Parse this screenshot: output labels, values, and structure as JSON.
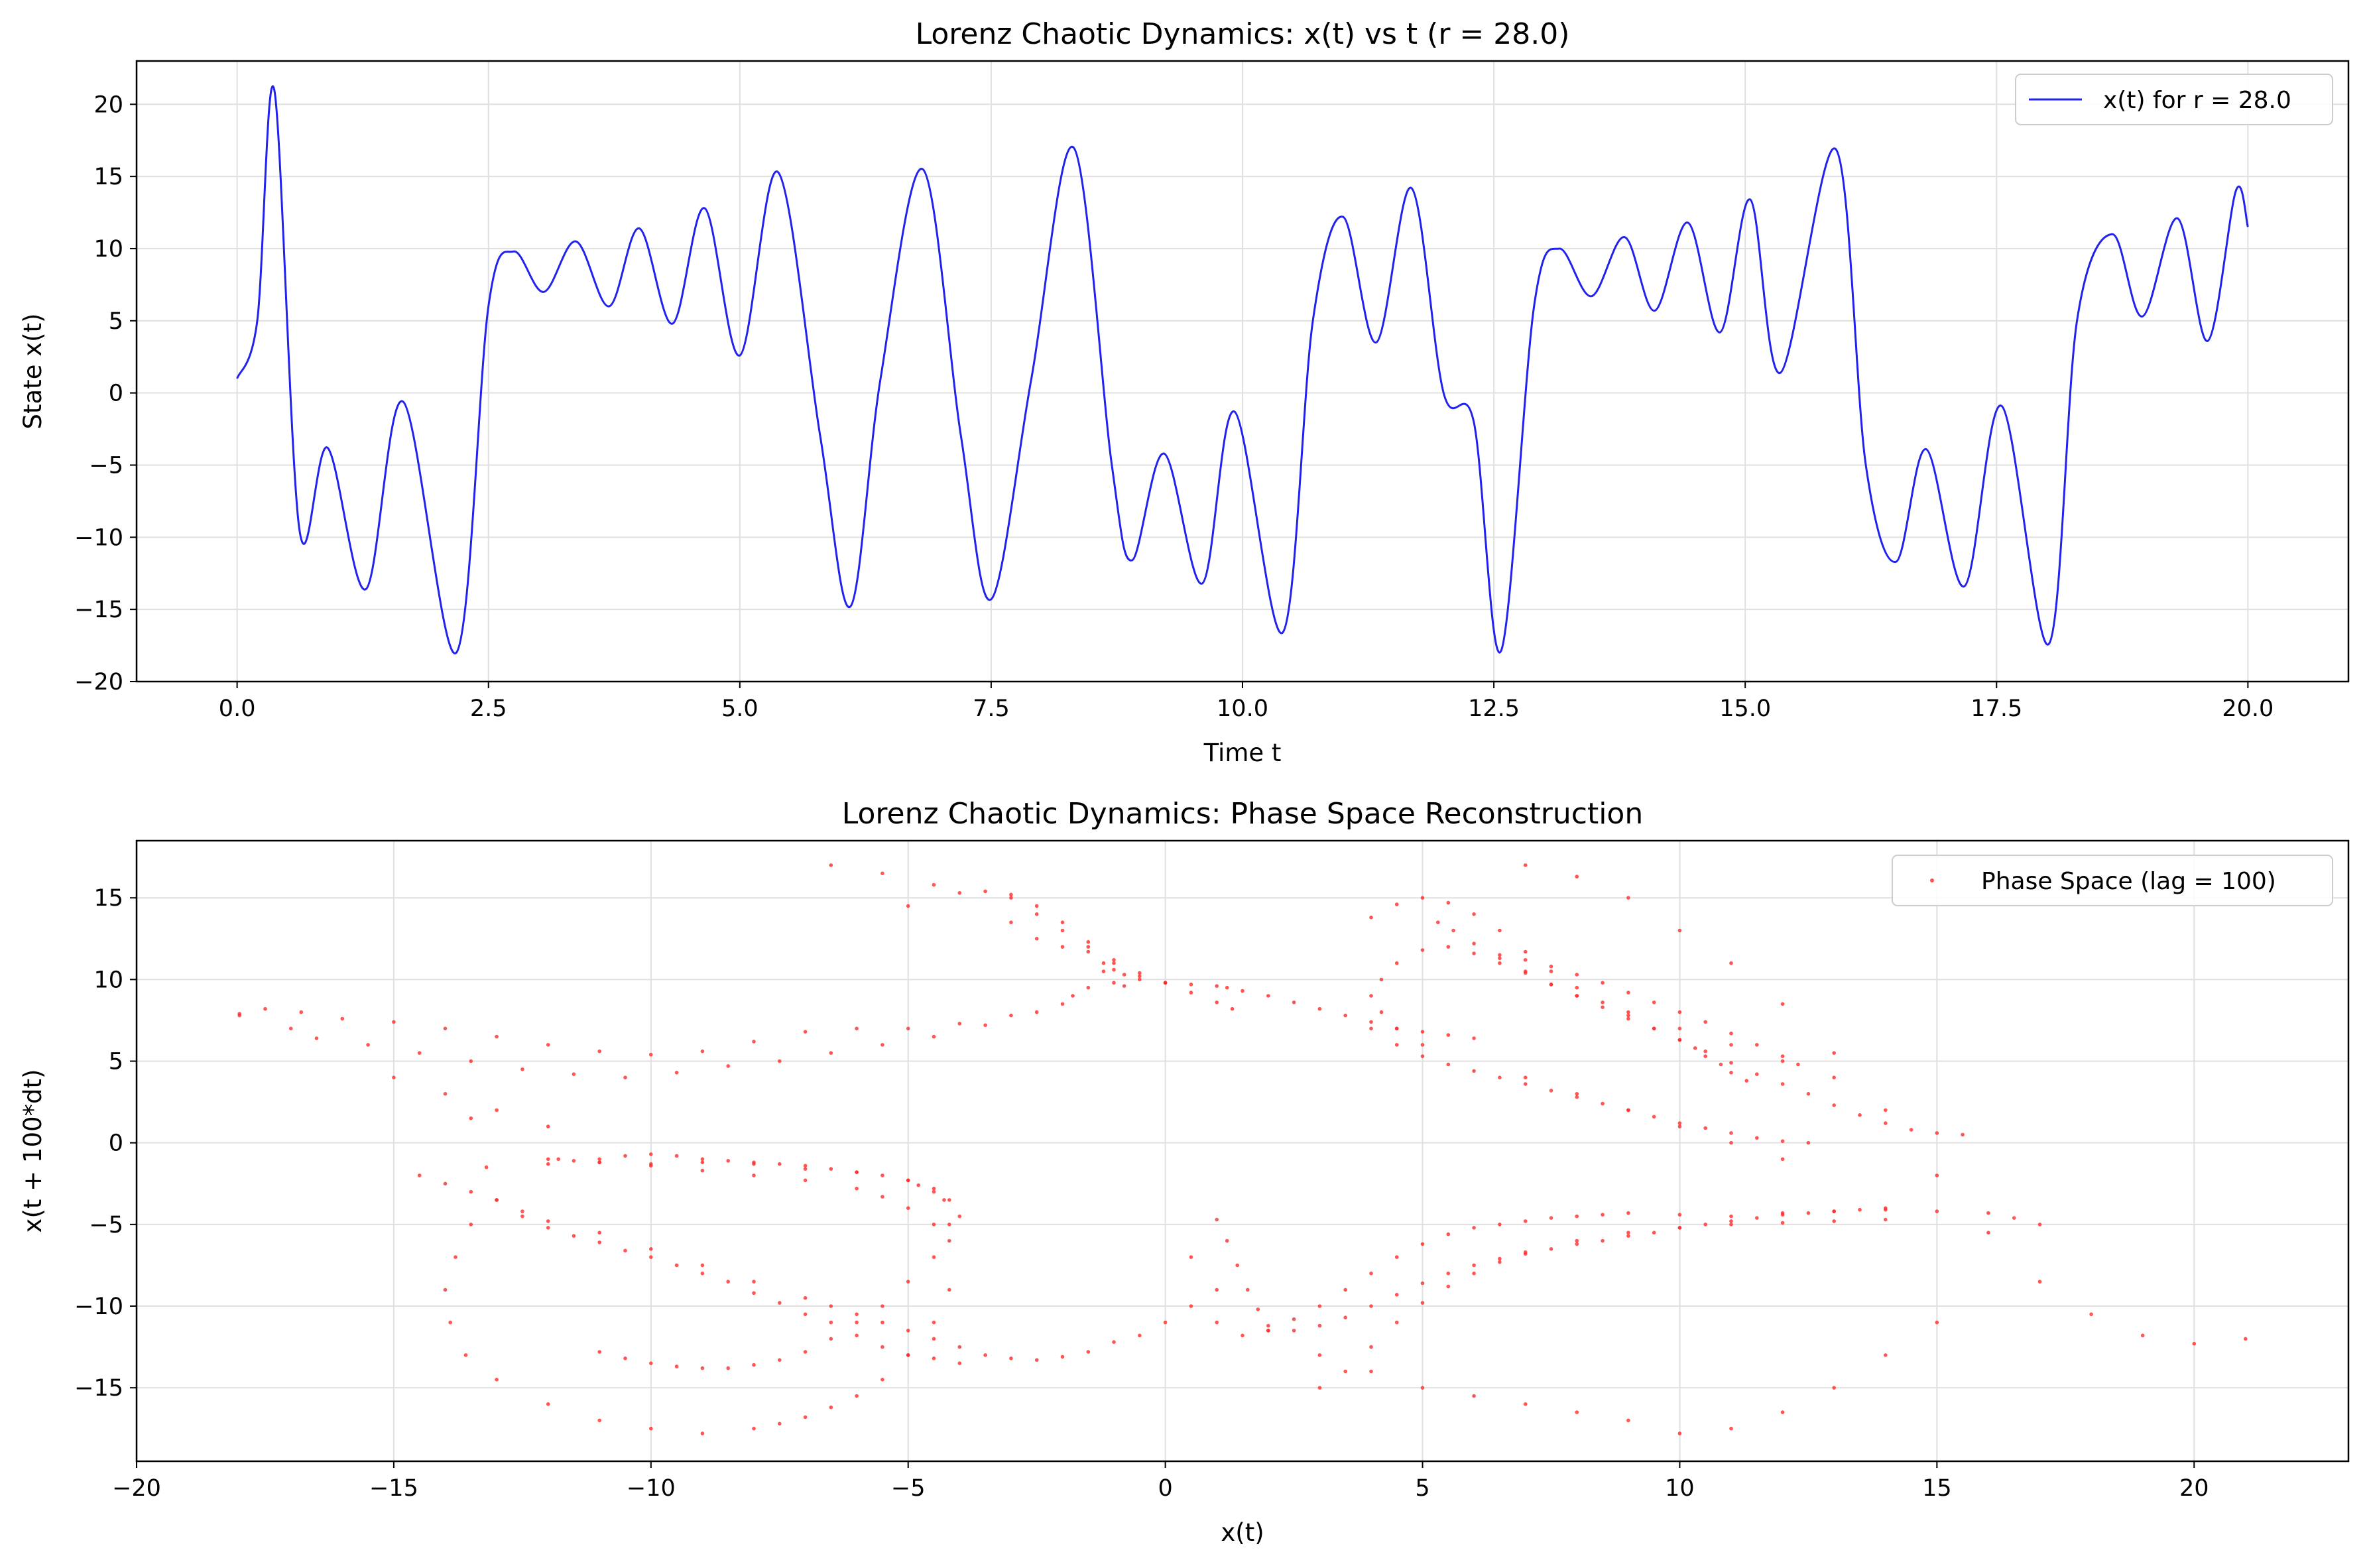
{
  "figure": {
    "background": "#ffffff",
    "grid_color": "#e0e0e0"
  },
  "chart_data": [
    {
      "type": "line",
      "title": "Lorenz Chaotic Dynamics: x(t) vs t (r = 28.0)",
      "xlabel": "Time t",
      "ylabel": "State x(t)",
      "xlim": [
        -1.0,
        21.0
      ],
      "ylim": [
        -20,
        23
      ],
      "xticks": [
        0.0,
        2.5,
        5.0,
        7.5,
        10.0,
        12.5,
        15.0,
        17.5,
        20.0
      ],
      "xtick_labels": [
        "0.0",
        "2.5",
        "5.0",
        "7.5",
        "10.0",
        "12.5",
        "15.0",
        "17.5",
        "20.0"
      ],
      "yticks": [
        -20,
        -15,
        -10,
        -5,
        0,
        5,
        10,
        15,
        20
      ],
      "ytick_labels": [
        "−20",
        "−15",
        "−10",
        "−5",
        "0",
        "5",
        "10",
        "15",
        "20"
      ],
      "grid": true,
      "legend_position": "top-right",
      "series": [
        {
          "name": "x(t) for r = 28.0",
          "color": "#2222ee",
          "x": [
            0.0,
            0.2,
            0.37,
            0.62,
            0.9,
            1.28,
            1.65,
            2.18,
            2.5,
            2.75,
            3.05,
            3.37,
            3.7,
            4.0,
            4.33,
            4.65,
            5.0,
            5.38,
            5.8,
            6.1,
            6.4,
            6.82,
            7.2,
            7.5,
            7.9,
            8.32,
            8.7,
            8.9,
            9.22,
            9.6,
            9.92,
            10.4,
            10.7,
            11.0,
            11.33,
            11.68,
            12.0,
            12.3,
            12.57,
            12.9,
            13.15,
            13.47,
            13.8,
            14.1,
            14.43,
            14.75,
            15.05,
            15.35,
            15.9,
            16.2,
            16.5,
            16.8,
            17.18,
            17.55,
            18.02,
            18.3,
            18.65,
            18.95,
            19.3,
            19.6,
            19.88,
            20.0
          ],
          "y": [
            1.0,
            5.0,
            21.0,
            -9.5,
            -3.8,
            -13.6,
            -0.6,
            -18.0,
            6.0,
            9.8,
            7.0,
            10.5,
            6.0,
            11.4,
            4.8,
            12.8,
            2.6,
            15.3,
            -3.0,
            -14.8,
            1.0,
            15.5,
            -3.0,
            -14.3,
            1.0,
            17.0,
            -5.0,
            -11.6,
            -4.2,
            -13.2,
            -1.3,
            -16.6,
            5.0,
            12.2,
            3.5,
            14.2,
            0.0,
            -2.0,
            -17.9,
            6.0,
            10.0,
            6.7,
            10.8,
            5.7,
            11.8,
            4.2,
            13.4,
            1.4,
            16.9,
            -5.0,
            -11.7,
            -3.9,
            -13.4,
            -0.9,
            -17.4,
            5.0,
            11.0,
            5.3,
            12.1,
            3.6,
            14.0,
            11.5
          ]
        }
      ]
    },
    {
      "type": "scatter",
      "title": "Lorenz Chaotic Dynamics: Phase Space Reconstruction",
      "xlabel": "x(t)",
      "ylabel": "x(t + 100*dt)",
      "xlim": [
        -20,
        23
      ],
      "ylim": [
        -19.5,
        18.5
      ],
      "xticks": [
        -20,
        -15,
        -10,
        -5,
        0,
        5,
        10,
        15,
        20
      ],
      "xtick_labels": [
        "−20",
        "−15",
        "−10",
        "−5",
        "0",
        "5",
        "10",
        "15",
        "20"
      ],
      "yticks": [
        -15,
        -10,
        -5,
        0,
        5,
        10,
        15
      ],
      "ytick_labels": [
        "−15",
        "−10",
        "−5",
        "0",
        "5",
        "10",
        "15"
      ],
      "grid": true,
      "legend_position": "top-right",
      "series": [
        {
          "name": "Phase Space (lag = 100)",
          "color": "#ff2a2a",
          "x": [
            -18.0,
            -17.5,
            -16.8,
            -16.0,
            -15.0,
            -14.0,
            -13.0,
            -12.0,
            -11.0,
            -10.0,
            -9.0,
            -8.0,
            -7.0,
            -6.0,
            -5.0,
            -4.0,
            -3.0,
            -2.0,
            -1.5,
            -1.0,
            -0.8,
            -18.0,
            -17.0,
            -16.5,
            -15.5,
            -14.5,
            -13.5,
            -12.5,
            -11.5,
            -10.5,
            -9.5,
            -8.5,
            -7.5,
            -6.5,
            -5.5,
            -4.5,
            -3.5,
            -2.5,
            -1.8,
            -1.2,
            -15.0,
            -14.0,
            -13.0,
            -12.0,
            -11.8,
            -11.0,
            -10.0,
            -9.0,
            -8.0,
            -7.0,
            -6.0,
            -5.0,
            -4.5,
            -4.2,
            -4.0,
            -12.0,
            -11.5,
            -11.0,
            -10.0,
            -9.0,
            -8.0,
            -7.0,
            -6.0,
            -5.5,
            -5.0,
            -4.5,
            -4.2,
            -13.5,
            -13.2,
            -13.0,
            -12.5,
            -12.0,
            -11.5,
            -11.0,
            -10.5,
            -10.0,
            -9.5,
            -9.0,
            -8.5,
            -8.0,
            -7.5,
            -7.0,
            -6.5,
            -6.0,
            -5.5,
            -5.0,
            -4.5,
            -4.0,
            -13.5,
            -13.8,
            -14.0,
            -13.9,
            -13.6,
            -13.0,
            -12.0,
            -11.0,
            -10.0,
            -9.0,
            -8.0,
            -7.5,
            -7.0,
            -6.5,
            -6.0,
            -5.5,
            -5.0,
            -4.5,
            -4.2,
            -14.5,
            -14.0,
            -13.5,
            -13.0,
            -12.5,
            -12.0,
            -11.0,
            -10.0,
            -9.0,
            -8.0,
            -7.0,
            -6.5,
            -6.0,
            -5.5,
            -5.0,
            -4.5,
            -4.0,
            -3.5,
            -3.0,
            -2.5,
            -2.0,
            -1.5,
            -1.0,
            -0.5,
            0.0,
            -12.0,
            -11.0,
            -10.5,
            -10.0,
            -9.5,
            -9.0,
            -8.5,
            -8.0,
            -7.5,
            -7.0,
            -6.5,
            -6.0,
            -5.5,
            -5.0,
            -4.8,
            -4.5,
            -4.3,
            -4.2,
            -4.5,
            -5.0,
            -5.5,
            -6.0,
            -6.5,
            -7.0,
            -7.5,
            -8.0,
            -8.5,
            -9.0,
            -9.5,
            -10.0,
            -10.5,
            -11.0,
            -6.5,
            -5.5,
            -4.5,
            -3.5,
            -3.0,
            -2.5,
            -2.0,
            -1.5,
            -1.0,
            -0.5,
            0.0,
            0.5,
            1.0,
            1.3,
            -5.0,
            -4.0,
            -3.0,
            -2.5,
            -2.0,
            -1.5,
            -1.0,
            -0.5,
            0.0,
            -3.0,
            -2.5,
            -2.0,
            -1.5,
            -1.2,
            -1.0,
            -0.8,
            -0.5,
            0.0,
            0.5,
            1.0,
            1.2,
            1.5,
            2.0,
            2.5,
            3.0,
            3.5,
            4.0,
            4.5,
            5.0,
            5.5,
            6.0,
            1.0,
            1.2,
            1.4,
            1.6,
            1.8,
            2.0,
            2.5,
            3.0,
            3.5,
            4.0,
            4.5,
            5.0,
            5.5,
            6.0,
            6.5,
            7.0,
            7.5,
            8.0,
            8.5,
            9.0,
            9.5,
            10.0,
            10.5,
            11.0,
            11.5,
            12.0,
            12.5,
            13.0,
            13.5,
            14.0,
            0.5,
            1.0,
            1.5,
            2.0,
            2.5,
            3.0,
            3.5,
            4.0,
            4.5,
            5.0,
            5.5,
            6.0,
            6.5,
            7.0,
            7.5,
            8.0,
            8.5,
            9.0,
            10.0,
            11.0,
            12.0,
            13.0,
            14.0,
            15.0,
            16.0,
            16.5,
            17.0,
            4.0,
            4.5,
            5.0,
            5.5,
            6.0,
            6.5,
            7.0,
            7.5,
            8.0,
            8.5,
            9.0,
            9.5,
            10.0,
            10.5,
            11.0,
            11.5,
            12.0,
            12.5,
            13.0,
            13.5,
            14.0,
            14.5,
            15.0,
            15.5,
            4.0,
            4.5,
            5.0,
            5.5,
            6.0,
            6.5,
            7.0,
            7.5,
            8.0,
            8.5,
            9.0,
            9.5,
            10.0,
            10.5,
            11.0,
            11.5,
            12.0,
            12.5,
            5.3,
            5.6,
            6.0,
            6.5,
            7.0,
            7.5,
            8.0,
            8.5,
            9.0,
            9.5,
            10.0,
            10.3,
            10.5,
            10.8,
            11.0,
            11.3,
            6.5,
            7.0,
            7.5,
            8.0,
            8.5,
            9.0,
            9.5,
            10.0,
            10.5,
            11.0,
            11.5,
            12.0,
            12.3,
            7.0,
            8.0,
            9.0,
            10.0,
            11.0,
            12.0,
            13.0,
            14.0,
            15.0,
            16.0,
            17.0,
            18.0,
            19.0,
            20.0,
            21.0,
            5.0,
            4.5,
            4.2,
            4.0,
            4.2,
            4.5,
            5.0,
            5.5,
            6.0,
            6.5,
            7.0,
            7.5,
            8.0,
            9.0,
            10.0,
            11.0,
            12.0,
            13.0,
            0.5,
            1.0,
            2.0,
            3.0,
            4.0,
            5.0,
            6.0,
            7.0,
            8.0,
            9.0,
            10.0,
            11.0,
            12.0,
            13.0,
            14.0,
            15.0,
            7.0,
            8.0,
            9.0,
            10.0,
            11.0,
            12.0,
            3.0,
            3.5,
            4.0,
            4.5,
            5.0,
            5.5,
            6.0,
            6.5,
            7.0,
            8.0,
            9.0,
            10.0,
            11.0,
            12.0,
            13.0,
            14.0
          ],
          "y": [
            7.8,
            8.2,
            8.0,
            7.6,
            7.4,
            7.0,
            6.5,
            6.0,
            5.6,
            5.4,
            5.6,
            6.2,
            6.8,
            7.0,
            7.0,
            7.3,
            7.8,
            8.5,
            9.5,
            9.8,
            9.6,
            7.9,
            7.0,
            6.4,
            6.0,
            5.5,
            5.0,
            4.5,
            4.2,
            4.0,
            4.3,
            4.7,
            5.0,
            5.5,
            6.0,
            6.5,
            7.2,
            8.0,
            9.0,
            10.5,
            4.0,
            3.0,
            2.0,
            1.0,
            -1.0,
            -1.2,
            -1.3,
            -1.2,
            -1.3,
            -1.6,
            -1.8,
            -2.3,
            -2.8,
            -3.5,
            -4.5,
            -1.0,
            -1.1,
            -1.2,
            -1.4,
            -1.7,
            -2.0,
            -2.3,
            -2.8,
            -3.3,
            -4.0,
            -5.0,
            -6.0,
            1.5,
            -1.5,
            -3.5,
            -4.5,
            -5.2,
            -5.7,
            -6.1,
            -6.6,
            -7.0,
            -7.5,
            -8.0,
            -8.5,
            -9.2,
            -9.8,
            -10.5,
            -11.0,
            -11.8,
            -12.5,
            -13.0,
            -13.2,
            -13.5,
            -5.0,
            -7.0,
            -9.0,
            -11.0,
            -13.0,
            -14.5,
            -16.0,
            -17.0,
            -17.5,
            -17.8,
            -17.5,
            -17.2,
            -16.8,
            -16.2,
            -15.5,
            -14.5,
            -13.0,
            -11.0,
            -9.0,
            -2.0,
            -2.5,
            -3.0,
            -3.5,
            -4.2,
            -4.8,
            -5.5,
            -6.5,
            -7.5,
            -8.5,
            -9.5,
            -10.0,
            -10.5,
            -11.0,
            -11.5,
            -12.0,
            -12.5,
            -13.0,
            -13.2,
            -13.3,
            -13.1,
            -12.8,
            -12.2,
            -11.8,
            -11.0,
            -1.3,
            -1.0,
            -0.8,
            -0.7,
            -0.8,
            -1.0,
            -1.1,
            -1.2,
            -1.3,
            -1.4,
            -1.6,
            -1.8,
            -2.0,
            -2.3,
            -2.6,
            -3.0,
            -3.5,
            -5.0,
            -7.0,
            -8.5,
            -10.0,
            -11.0,
            -12.0,
            -12.8,
            -13.3,
            -13.6,
            -13.8,
            -13.8,
            -13.7,
            -13.5,
            -13.2,
            -12.8,
            17.0,
            16.5,
            15.8,
            15.4,
            15.0,
            14.0,
            13.0,
            12.0,
            11.0,
            10.2,
            9.8,
            9.2,
            8.6,
            8.2,
            14.5,
            15.3,
            15.2,
            14.5,
            13.5,
            12.3,
            11.2,
            10.4,
            9.8,
            13.5,
            12.5,
            12.0,
            11.7,
            11.0,
            10.6,
            10.3,
            10.0,
            9.8,
            9.7,
            9.6,
            9.5,
            9.3,
            9.0,
            8.6,
            8.2,
            7.8,
            7.4,
            7.0,
            6.8,
            6.6,
            6.4,
            -4.7,
            -6.0,
            -7.5,
            -9.0,
            -10.2,
            -11.2,
            -11.5,
            -11.2,
            -10.7,
            -10.0,
            -9.3,
            -8.6,
            -8.0,
            -7.5,
            -7.1,
            -6.8,
            -6.5,
            -6.2,
            -6.0,
            -5.7,
            -5.5,
            -5.2,
            -5.0,
            -4.8,
            -4.6,
            -4.4,
            -4.3,
            -4.2,
            -4.1,
            -4.0,
            -10.0,
            -11.0,
            -11.8,
            -11.5,
            -10.8,
            -10.0,
            -9.0,
            -8.0,
            -7.0,
            -6.2,
            -5.6,
            -5.2,
            -5.0,
            -4.8,
            -4.6,
            -4.5,
            -4.4,
            -4.3,
            -4.4,
            -4.5,
            -4.3,
            -4.2,
            -4.1,
            -4.2,
            -4.3,
            -4.6,
            -5.0,
            13.8,
            14.6,
            15.0,
            14.7,
            14.0,
            13.0,
            11.7,
            10.5,
            9.5,
            8.6,
            7.8,
            7.0,
            6.3,
            5.6,
            4.9,
            4.2,
            3.6,
            3.0,
            2.3,
            1.7,
            1.2,
            0.8,
            0.6,
            0.5,
            7.0,
            6.0,
            5.3,
            4.8,
            4.4,
            4.0,
            3.6,
            3.2,
            2.8,
            2.4,
            2.0,
            1.6,
            1.2,
            0.9,
            0.6,
            0.3,
            0.1,
            0.0,
            13.5,
            13.0,
            12.2,
            11.3,
            10.5,
            9.7,
            9.0,
            8.3,
            7.6,
            7.0,
            6.3,
            5.8,
            5.3,
            4.8,
            4.3,
            3.8,
            11.5,
            11.2,
            10.8,
            10.3,
            9.8,
            9.2,
            8.6,
            8.0,
            7.4,
            6.7,
            6.0,
            5.3,
            4.8,
            17.0,
            16.3,
            15.0,
            13.0,
            11.0,
            8.5,
            5.5,
            2.0,
            -2.0,
            -5.5,
            -8.5,
            -10.5,
            -11.8,
            -12.3,
            -12.0,
            6.0,
            7.0,
            8.0,
            9.0,
            10.0,
            11.0,
            11.8,
            12.0,
            11.6,
            11.0,
            10.4,
            9.7,
            9.0,
            8.0,
            7.0,
            6.0,
            5.0,
            4.0,
            -7.0,
            -9.0,
            -11.5,
            -13.0,
            -14.0,
            -15.0,
            -15.5,
            -16.0,
            -16.5,
            -17.0,
            -17.8,
            -17.5,
            -16.5,
            -15.0,
            -13.0,
            -11.0,
            4.0,
            3.0,
            2.0,
            1.0,
            0.0,
            -1.0,
            -15.0,
            -14.0,
            -12.5,
            -11.0,
            -9.8,
            -8.8,
            -8.0,
            -7.3,
            -6.7,
            -6.0,
            -5.5,
            -5.2,
            -5.0,
            -4.9,
            -4.8,
            -4.7
          ]
        }
      ]
    }
  ]
}
